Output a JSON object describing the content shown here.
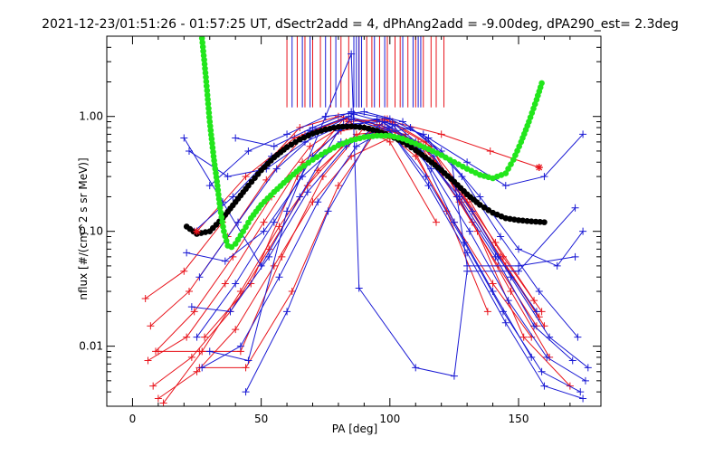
{
  "chart_data": {
    "type": "scatter",
    "title": "2021-12-23/01:51:26 - 01:57:25 UT, dSectr2add = 4, dPhAng2add = -9.00deg, dPA290_est=   2.3deg",
    "xlabel": "PA [deg]",
    "ylabel": "nflux [#/(cm^2 s sr MeV)]",
    "xlim": [
      -10,
      182
    ],
    "ylim": [
      0.003,
      5.0
    ],
    "yscale": "log",
    "grid": false,
    "legend": "none",
    "x_ticks": [
      0,
      50,
      100,
      150
    ],
    "x_tick_labels": [
      "0",
      "50",
      "100",
      "150"
    ],
    "y_ticks": [
      0.01,
      0.1,
      1.0
    ],
    "y_tick_labels": [
      "0.01",
      "0.10",
      "1.00"
    ],
    "colors": {
      "red": "#e8141c",
      "blue": "#1a1ad4",
      "green": "#22e61c",
      "black": "#000000",
      "frame": "#000000"
    },
    "vertical_markers": {
      "y_bottom": 1.2,
      "red_x": [
        60,
        64,
        67,
        70,
        73,
        77,
        81,
        84,
        88,
        91,
        93,
        96,
        99,
        102,
        104,
        107,
        110,
        113,
        116,
        118,
        121
      ],
      "blue_x": [
        62,
        66,
        69,
        75,
        79,
        86,
        87,
        88,
        89,
        94,
        98,
        105,
        109,
        111,
        112
      ]
    },
    "series": [
      {
        "color": "red",
        "x": [
          5,
          20,
          35,
          50,
          65,
          80,
          95,
          110,
          125,
          140,
          155
        ],
        "y": [
          0.026,
          0.045,
          0.12,
          0.35,
          0.8,
          1.0,
          0.85,
          0.45,
          0.12,
          0.035,
          0.012
        ]
      },
      {
        "color": "red",
        "x": [
          7,
          22,
          37,
          52,
          67,
          82,
          97,
          112,
          127,
          142,
          157
        ],
        "y": [
          0.015,
          0.03,
          0.09,
          0.28,
          0.7,
          0.95,
          0.9,
          0.55,
          0.18,
          0.05,
          0.015
        ]
      },
      {
        "color": "red",
        "x": [
          9,
          24,
          39,
          54,
          69,
          84,
          99,
          114,
          129,
          144,
          159
        ],
        "y": [
          0.009,
          0.02,
          0.06,
          0.2,
          0.55,
          0.9,
          0.95,
          0.6,
          0.22,
          0.06,
          0.02
        ]
      },
      {
        "color": "red",
        "x": [
          6,
          21,
          36,
          51,
          66,
          81,
          96,
          111,
          126,
          141,
          156
        ],
        "y": [
          0.0075,
          0.012,
          0.035,
          0.12,
          0.4,
          0.75,
          0.85,
          0.6,
          0.25,
          0.08,
          0.025
        ]
      },
      {
        "color": "red",
        "x": [
          8,
          23,
          38,
          53,
          68,
          83,
          98,
          113,
          128,
          143,
          158
        ],
        "y": [
          0.0045,
          0.008,
          0.02,
          0.07,
          0.25,
          0.6,
          0.8,
          0.55,
          0.2,
          0.06,
          0.018
        ]
      },
      {
        "color": "red",
        "x": [
          10,
          25,
          40,
          55,
          70,
          85,
          100,
          115,
          130,
          145,
          160
        ],
        "y": [
          0.0035,
          0.006,
          0.014,
          0.05,
          0.18,
          0.45,
          0.65,
          0.5,
          0.18,
          0.05,
          0.015
        ]
      },
      {
        "color": "red",
        "x": [
          12,
          27,
          42,
          57,
          72,
          87,
          102,
          117,
          132,
          147,
          162
        ],
        "y": [
          0.0032,
          0.009,
          0.03,
          0.11,
          0.34,
          0.7,
          0.75,
          0.4,
          0.12,
          0.03,
          0.008
        ]
      },
      {
        "color": "red",
        "x": [
          25,
          44,
          63,
          82,
          101,
          120,
          139,
          158
        ],
        "y": [
          0.1,
          0.3,
          0.65,
          0.95,
          0.9,
          0.7,
          0.5,
          0.36
        ]
      },
      {
        "color": "red",
        "x": [
          10,
          26,
          42,
          58,
          74,
          90,
          106,
          122,
          138
        ],
        "y": [
          0.009,
          0.009,
          0.009,
          0.06,
          0.3,
          0.8,
          0.7,
          0.15,
          0.02
        ]
      },
      {
        "color": "red",
        "x": [
          26,
          44,
          62,
          80,
          98,
          116,
          134,
          152,
          170
        ],
        "y": [
          0.0065,
          0.0065,
          0.03,
          0.25,
          0.95,
          0.55,
          0.1,
          0.012,
          0.0045
        ]
      },
      {
        "color": "red",
        "x": [
          28,
          46,
          64,
          82,
          100,
          118
        ],
        "y": [
          0.012,
          0.035,
          0.3,
          0.95,
          0.6,
          0.12
        ]
      },
      {
        "color": "blue",
        "x": [
          20,
          35,
          50,
          65,
          80,
          95,
          110,
          125,
          140,
          155
        ],
        "y": [
          0.65,
          0.18,
          0.05,
          0.2,
          0.75,
          0.95,
          0.6,
          0.12,
          0.03,
          0.008
        ]
      },
      {
        "color": "blue",
        "x": [
          22,
          37,
          52,
          67,
          82,
          97,
          112,
          127,
          142,
          157
        ],
        "y": [
          0.5,
          0.3,
          0.35,
          0.6,
          0.85,
          0.9,
          0.5,
          0.2,
          0.06,
          0.02
        ]
      },
      {
        "color": "blue",
        "x": [
          24,
          39,
          54,
          69,
          84,
          99,
          114,
          129,
          144,
          159,
          174
        ],
        "y": [
          0.1,
          0.2,
          0.45,
          0.75,
          1.0,
          0.8,
          0.3,
          0.08,
          0.02,
          0.006,
          0.004
        ]
      },
      {
        "color": "blue",
        "x": [
          26,
          41,
          56,
          71,
          86,
          101,
          116,
          131,
          146,
          161,
          176
        ],
        "y": [
          0.04,
          0.12,
          0.35,
          0.7,
          1.05,
          0.85,
          0.35,
          0.1,
          0.025,
          0.008,
          0.005
        ]
      },
      {
        "color": "blue",
        "x": [
          21,
          36,
          51,
          66,
          81,
          96,
          111,
          126,
          141,
          156,
          171
        ],
        "y": [
          0.065,
          0.055,
          0.1,
          0.3,
          0.6,
          0.75,
          0.55,
          0.2,
          0.06,
          0.015,
          0.0075
        ]
      },
      {
        "color": "blue",
        "x": [
          23,
          38,
          53,
          68,
          83,
          98,
          113,
          128,
          143,
          158,
          173
        ],
        "y": [
          0.022,
          0.02,
          0.06,
          0.22,
          0.55,
          0.9,
          0.7,
          0.3,
          0.09,
          0.03,
          0.012
        ]
      },
      {
        "color": "blue",
        "x": [
          25,
          40,
          55,
          70,
          85,
          100,
          115,
          130,
          145,
          160,
          175
        ],
        "y": [
          0.012,
          0.035,
          0.12,
          0.45,
          0.95,
          0.75,
          0.25,
          0.065,
          0.016,
          0.0045,
          0.0035
        ]
      },
      {
        "color": "blue",
        "x": [
          27,
          42,
          57,
          72,
          87,
          102,
          117,
          132,
          147,
          162,
          177
        ],
        "y": [
          0.0065,
          0.01,
          0.04,
          0.18,
          0.55,
          0.85,
          0.45,
          0.15,
          0.04,
          0.012,
          0.0065
        ]
      },
      {
        "color": "blue",
        "x": [
          40,
          55,
          70,
          85,
          100,
          115,
          130,
          145,
          160,
          175
        ],
        "y": [
          0.65,
          0.55,
          0.8,
          1.1,
          0.95,
          0.65,
          0.4,
          0.25,
          0.3,
          0.7
        ]
      },
      {
        "color": "blue",
        "x": [
          30,
          45,
          60,
          75,
          90,
          105,
          120,
          135,
          150,
          165,
          175
        ],
        "y": [
          0.25,
          0.5,
          0.7,
          1.0,
          1.1,
          0.9,
          0.5,
          0.2,
          0.07,
          0.05,
          0.1
        ]
      },
      {
        "color": "blue",
        "x": [
          30,
          45,
          60,
          75,
          85,
          88,
          110,
          125,
          130,
          150,
          172
        ],
        "y": [
          0.009,
          0.0075,
          0.15,
          1.0,
          3.5,
          0.032,
          0.0065,
          0.0055,
          0.045,
          0.045,
          0.16
        ]
      },
      {
        "color": "blue",
        "x": [
          44,
          60,
          76,
          92,
          108,
          124,
          130,
          150,
          172
        ],
        "y": [
          0.004,
          0.02,
          0.15,
          0.65,
          0.8,
          0.4,
          0.05,
          0.05,
          0.06
        ]
      }
    ],
    "curves": [
      {
        "color": "black",
        "x": [
          21,
          25,
          30,
          35,
          40,
          45,
          50,
          55,
          60,
          65,
          70,
          75,
          80,
          85,
          90,
          95,
          100,
          105,
          110,
          115,
          120,
          125,
          130,
          135,
          140,
          145,
          150,
          155,
          160
        ],
        "y": [
          0.11,
          0.095,
          0.1,
          0.13,
          0.18,
          0.25,
          0.34,
          0.44,
          0.54,
          0.63,
          0.71,
          0.77,
          0.81,
          0.82,
          0.8,
          0.75,
          0.68,
          0.6,
          0.51,
          0.42,
          0.34,
          0.27,
          0.21,
          0.17,
          0.145,
          0.13,
          0.125,
          0.122,
          0.12
        ]
      },
      {
        "color": "green",
        "x": [
          27,
          28.5,
          30,
          31.5,
          33,
          34,
          35.5,
          37,
          38.5,
          40,
          43,
          46,
          50,
          55,
          60,
          65,
          70,
          75,
          80,
          85,
          90,
          95,
          100,
          105,
          110,
          115,
          120,
          125,
          130,
          135,
          140,
          145,
          148,
          151,
          154,
          157,
          159
        ],
        "y": [
          4.8,
          2.2,
          0.9,
          0.45,
          0.25,
          0.16,
          0.1,
          0.075,
          0.073,
          0.078,
          0.1,
          0.13,
          0.17,
          0.22,
          0.28,
          0.35,
          0.42,
          0.49,
          0.56,
          0.62,
          0.66,
          0.68,
          0.68,
          0.64,
          0.58,
          0.52,
          0.46,
          0.4,
          0.35,
          0.31,
          0.29,
          0.32,
          0.42,
          0.6,
          0.9,
          1.4,
          1.95
        ]
      }
    ],
    "star_markers": [
      {
        "color": "red",
        "x": 25,
        "y": 0.1
      },
      {
        "color": "red",
        "x": 158,
        "y": 0.36
      }
    ]
  }
}
